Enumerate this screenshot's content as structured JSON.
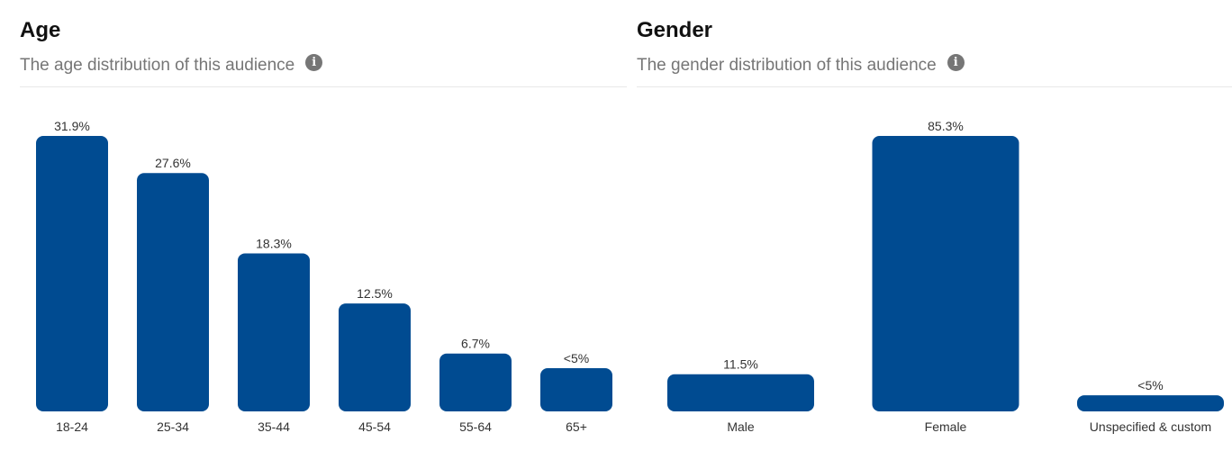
{
  "chart_data": [
    {
      "type": "bar",
      "title": "Age",
      "subtitle": "The age distribution of this audience",
      "categories": [
        "18-24",
        "25-34",
        "35-44",
        "45-54",
        "55-64",
        "65+"
      ],
      "values": [
        31.9,
        27.6,
        18.3,
        12.5,
        6.7,
        5
      ],
      "labels": [
        "31.9%",
        "27.6%",
        "18.3%",
        "12.5%",
        "6.7%",
        "<5%"
      ],
      "ylim": [
        0,
        31.9
      ],
      "grid": false,
      "color": "#004b91"
    },
    {
      "type": "bar",
      "title": "Gender",
      "subtitle": "The gender distribution of this audience",
      "categories": [
        "Male",
        "Female",
        "Unspecified & custom"
      ],
      "values": [
        11.5,
        85.3,
        5
      ],
      "labels": [
        "11.5%",
        "85.3%",
        "<5%"
      ],
      "ylim": [
        0,
        85.3
      ],
      "grid": false,
      "color": "#004b91"
    }
  ],
  "icons": {
    "info": "info-icon"
  },
  "info_glyph": "i"
}
